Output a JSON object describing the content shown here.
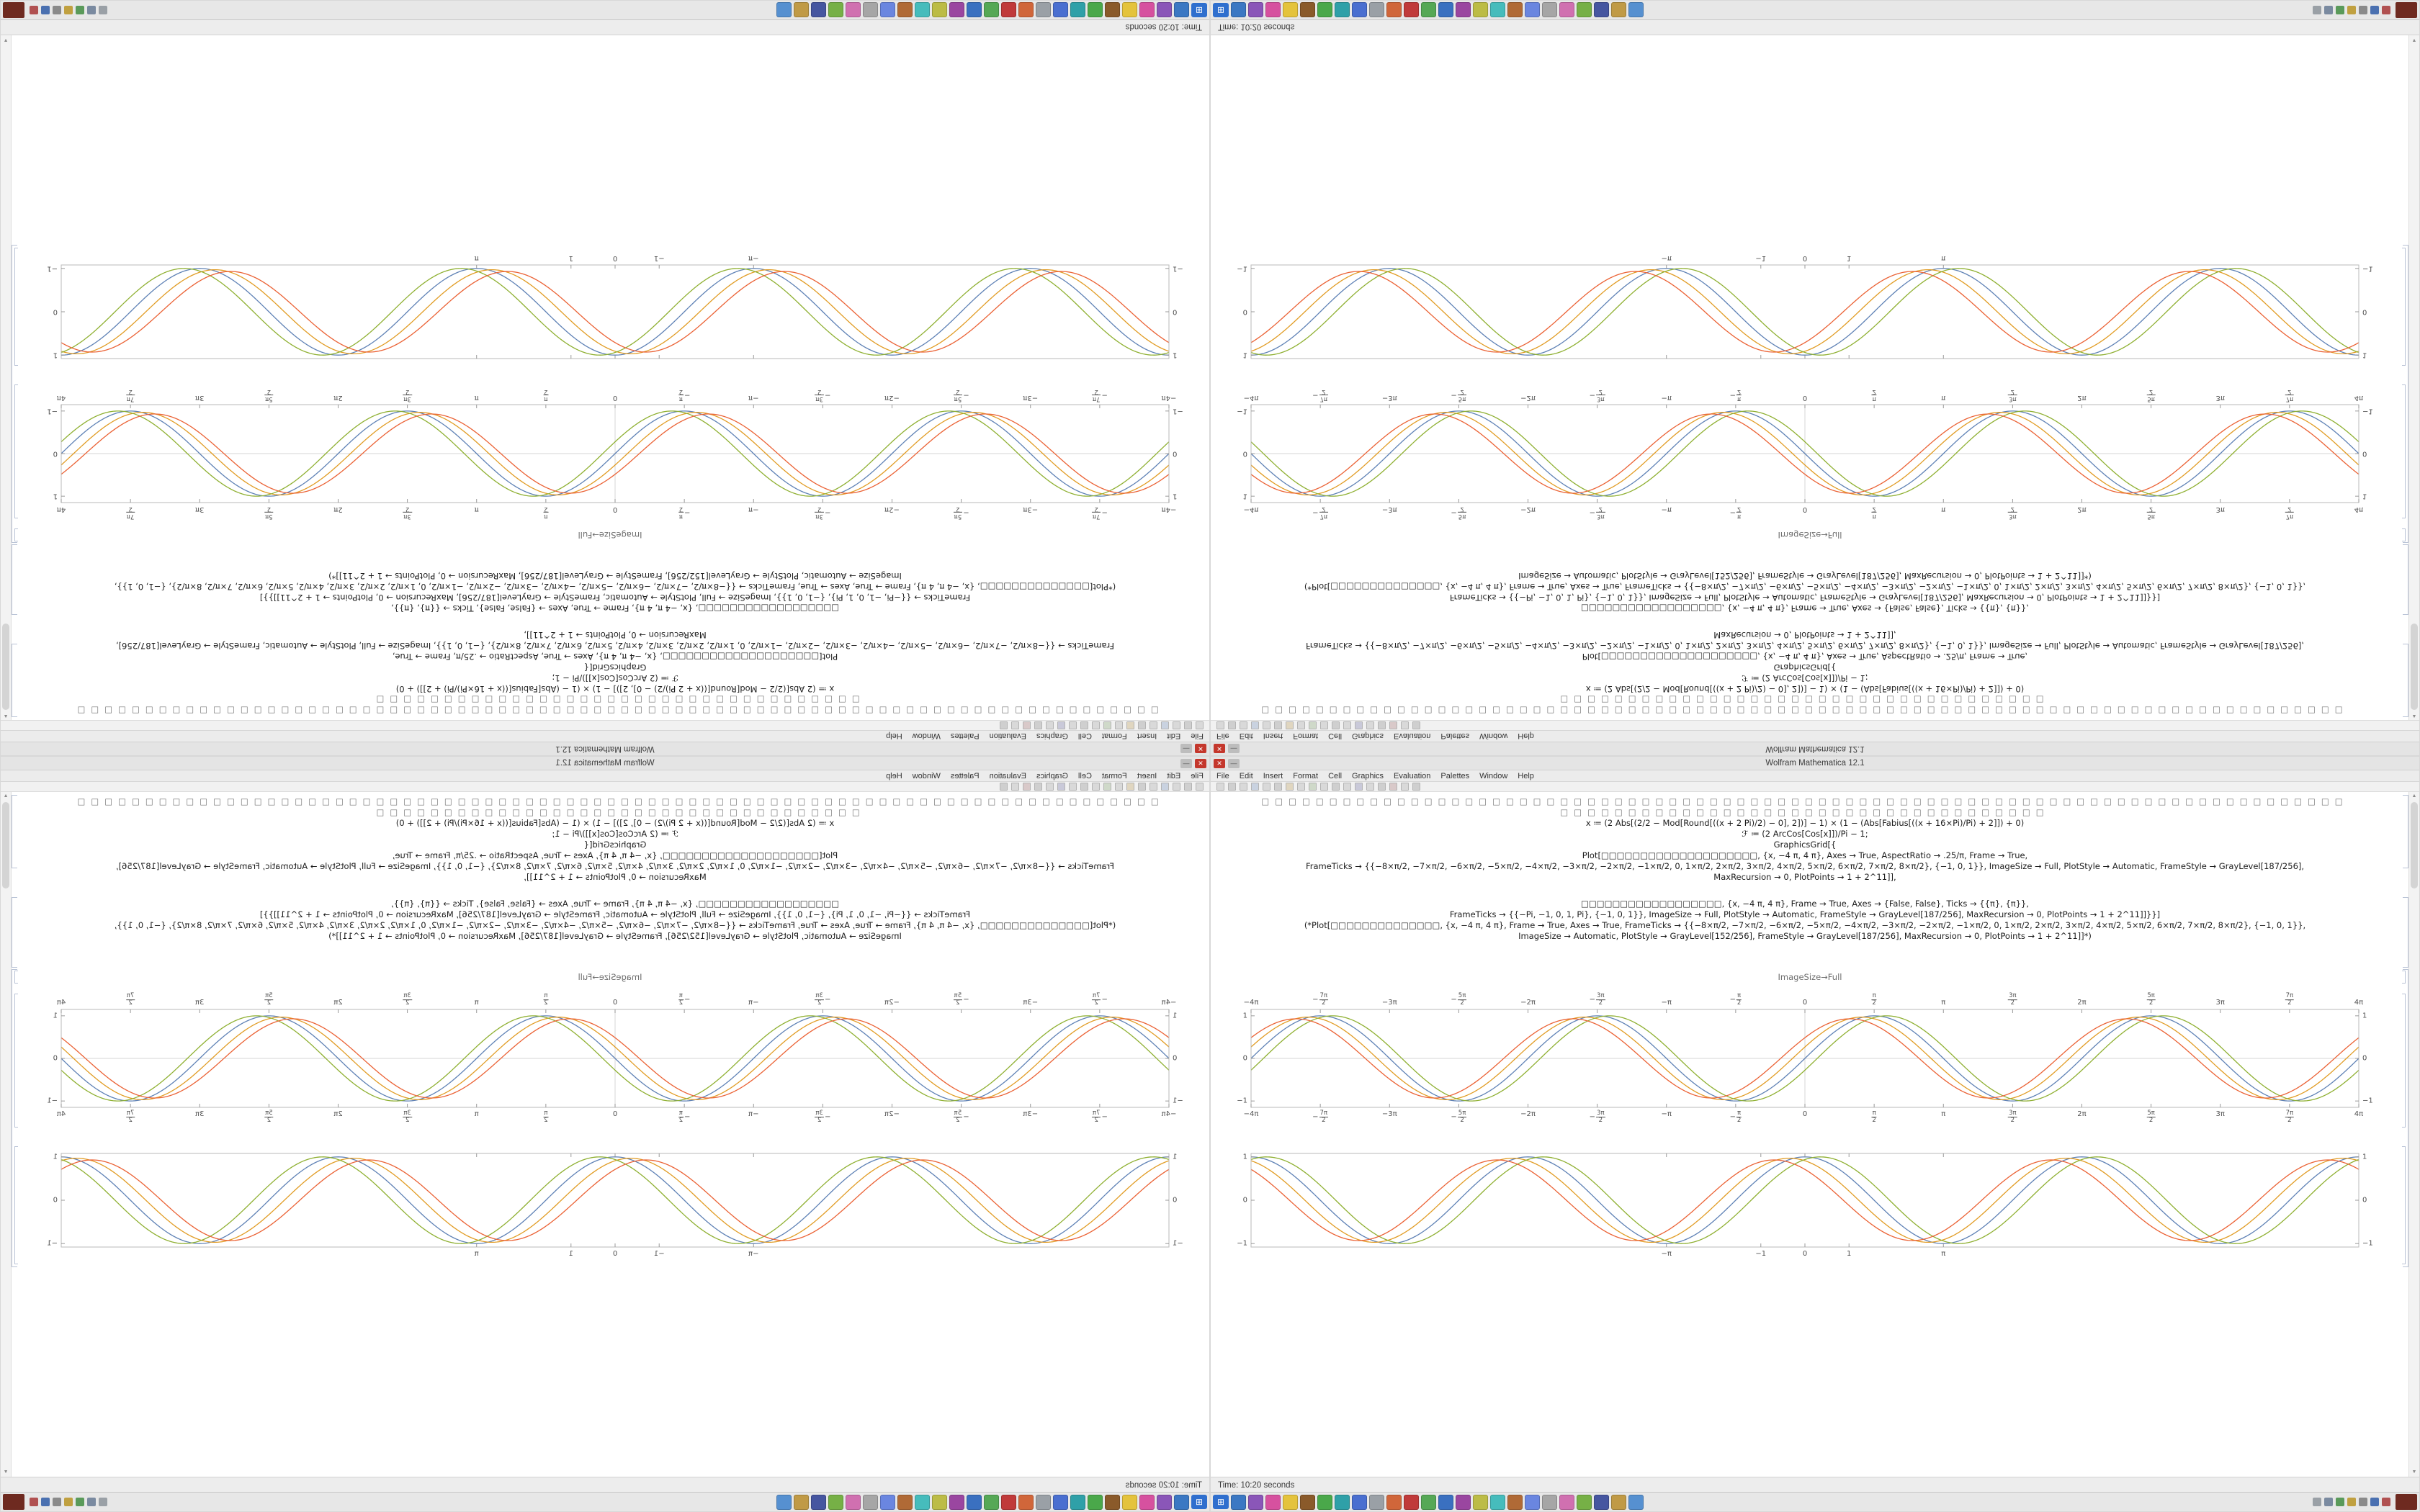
{
  "window": {
    "title": "Wolfram Mathematica 12.1",
    "close_glyph": "✕",
    "minimize_glyph": "—",
    "menus": [
      "File",
      "Edit",
      "Insert",
      "Format",
      "Cell",
      "Graphics",
      "Evaluation",
      "Palettes",
      "Window",
      "Help"
    ],
    "status_text": "Time: 10:20 seconds",
    "scroll_up_glyph": "▲",
    "scroll_down_glyph": "▼"
  },
  "notebook": {
    "caption": "ImageSize→Full",
    "cell1_lines": [
      "□□□□□□□□□□□□□□□□□□□□□□□□□□□□□□□□□□□□□□□□□□□□□□□□□□□□□□□□□□□□□□□□□□□□□□□□□□□□□□□□",
      "□□□□□□□□□□□□□□□□□□□□□□□□□□□□□□□□□□□□",
      "x ≔ (2 Abs[(2/2 − Mod[Round[((x + 2 Pi)/2) − 0], 2])] − 1) × (1 − (Abs[Fabius[((x + 16×Pi)/Pi) + 2]]) + 0)",
      "ℱ ≔ (2 ArcCos[Cos[x]])/Pi − 1;",
      "GraphicsGrid[{",
      "Plot[□□□□□□□□□□□□□□□□□□□□, {x, −4 π, 4 π}, Axes → True, AspectRatio → .25/π, Frame → True,",
      "FrameTicks → {{−8×π/2, −7×π/2, −6×π/2, −5×π/2, −4×π/2, −3×π/2, −2×π/2, −1×π/2, 0, 1×π/2, 2×π/2, 3×π/2, 4×π/2, 5×π/2, 6×π/2, 7×π/2, 8×π/2}, {−1, 0, 1}}, ImageSize → Full, PlotStyle → Automatic, FrameStyle → GrayLevel[187/256],",
      "MaxRecursion → 0, PlotPoints → 1 + 2^11]],"
    ],
    "cell2_lines": [
      "□□□□□□□□□□□□□□□□□□, {x, −4 π, 4 π}, Frame → True, Axes → {False, False}, Ticks → {{π}, {π}},",
      "FrameTicks → {{−Pi, −1, 0, 1, Pi}, {−1, 0, 1}}, ImageSize → Full, PlotStyle → Automatic, FrameStyle → GrayLevel[187/256], MaxRecursion → 0, PlotPoints → 1 + 2^11]]}}]",
      "(*Plot[□□□□□□□□□□□□□□, {x, −4 π, 4 π}, Frame → True, Axes → True, FrameTicks → {{−8×π/2, −7×π/2, −6×π/2, −5×π/2, −4×π/2, −3×π/2, −2×π/2, −1×π/2, 0, 1×π/2, 2×π/2, 3×π/2, 4×π/2, 5×π/2, 6×π/2, 7×π/2, 8×π/2}, {−1, 0, 1}},",
      "ImageSize → Automatic, PlotStyle → GrayLevel[152/256], FrameStyle → GrayLevel[187/256], MaxRecursion → 0, PlotPoints → 1 + 2^11]]*)"
    ]
  },
  "chart_data": [
    {
      "type": "line",
      "name": "plot-upper",
      "description": "Upper GraphicsGrid output: four overlapping phase-shifted sine waves on a gray frame with pi/2 tick labels",
      "x_min": -12.5664,
      "x_max": 12.5664,
      "y_min": -1.15,
      "y_max": 1.15,
      "axes": true,
      "frame": true,
      "labels_top": true,
      "labels_right": true,
      "frame_color": "#bababa",
      "axis_color": "#d6d6d6",
      "tick_color": "#8f8f8f",
      "margins": {
        "l": 26,
        "r": 26,
        "t": 20,
        "b": 24
      },
      "x_ticks": [
        {
          "v": -12.5664,
          "l": "−4π"
        },
        {
          "v": -10.9956,
          "s": "−",
          "n": "7π",
          "d": "2"
        },
        {
          "v": -9.4248,
          "l": "−3π"
        },
        {
          "v": -7.854,
          "s": "−",
          "n": "5π",
          "d": "2"
        },
        {
          "v": -6.2832,
          "l": "−2π"
        },
        {
          "v": -4.7124,
          "s": "−",
          "n": "3π",
          "d": "2"
        },
        {
          "v": -3.1416,
          "l": "−π"
        },
        {
          "v": -1.5708,
          "s": "−",
          "n": "π",
          "d": "2"
        },
        {
          "v": 0,
          "l": "0"
        },
        {
          "v": 1.5708,
          "n": "π",
          "d": "2"
        },
        {
          "v": 3.1416,
          "l": "π"
        },
        {
          "v": 4.7124,
          "n": "3π",
          "d": "2"
        },
        {
          "v": 6.2832,
          "l": "2π"
        },
        {
          "v": 7.854,
          "n": "5π",
          "d": "2"
        },
        {
          "v": 9.4248,
          "l": "3π"
        },
        {
          "v": 10.9956,
          "n": "7π",
          "d": "2"
        },
        {
          "v": 12.5664,
          "l": "4π"
        }
      ],
      "y_ticks": [
        {
          "v": -1,
          "l": "−1"
        },
        {
          "v": 0,
          "l": "0"
        },
        {
          "v": 1,
          "l": "1"
        }
      ],
      "series": [
        {
          "name": "series-blue",
          "fn": "sin",
          "amp": 1.0,
          "phase": 0.0,
          "color": "#5E81B5"
        },
        {
          "name": "series-orange",
          "fn": "sin",
          "amp": 0.97,
          "phase": 0.28,
          "color": "#E19C24"
        },
        {
          "name": "series-green",
          "fn": "sin",
          "amp": 1.0,
          "phase": -0.28,
          "color": "#8FB032"
        },
        {
          "name": "series-red",
          "fn": "sin",
          "amp": 0.93,
          "phase": 0.55,
          "color": "#EB6235"
        }
      ]
    },
    {
      "type": "line",
      "name": "plot-lower",
      "description": "Lower GraphicsGrid output: four overlapping phase-shifted cosine waves, sparse ticks at -Pi,-1,0,1,Pi",
      "x_min": -12.5664,
      "x_max": 12.5664,
      "y_min": -1.08,
      "y_max": 1.08,
      "axes": false,
      "frame": true,
      "labels_top": false,
      "labels_right": true,
      "frame_color": "#bababa",
      "axis_color": "#d6d6d6",
      "tick_color": "#8f8f8f",
      "margins": {
        "l": 26,
        "r": 26,
        "t": 8,
        "b": 20
      },
      "x_ticks": [
        {
          "v": -3.1416,
          "l": "−π"
        },
        {
          "v": -1,
          "l": "−1"
        },
        {
          "v": 0,
          "l": "0"
        },
        {
          "v": 1,
          "l": "1"
        },
        {
          "v": 3.1416,
          "l": "π"
        }
      ],
      "y_ticks": [
        {
          "v": -1,
          "l": "−1"
        },
        {
          "v": 0,
          "l": "0"
        },
        {
          "v": 1,
          "l": "1"
        }
      ],
      "series": [
        {
          "name": "series-blue",
          "fn": "cos",
          "amp": 1.0,
          "phase": 0.0,
          "color": "#5E81B5"
        },
        {
          "name": "series-orange",
          "fn": "cos",
          "amp": 0.97,
          "phase": 0.35,
          "color": "#E19C24"
        },
        {
          "name": "series-green",
          "fn": "cos",
          "amp": 1.0,
          "phase": -0.35,
          "color": "#8FB032"
        },
        {
          "name": "series-red",
          "fn": "cos",
          "amp": 0.93,
          "phase": 0.7,
          "color": "#EB6235"
        }
      ]
    }
  ],
  "toolbar_icon_colors": [
    "#d9d9d9",
    "#cfcfcf",
    "#d9d9d9",
    "#c9d2e0",
    "#d9d9d9",
    "#cfcfcf",
    "#e0d6c0",
    "#d9d9d9",
    "#cfd9c9",
    "#d9d9d9",
    "#cfcfcf",
    "#d9d9d9",
    "#c9c9d9",
    "#d9d9d9",
    "#cfcfcf",
    "#d9c9c9",
    "#d9d9d9",
    "#cfcfcf"
  ],
  "taskbar": {
    "start_glyph": "⊞",
    "app_icon_colors": [
      "#3b78c3",
      "#8a56b8",
      "#d6519f",
      "#e4c33c",
      "#8a5a2a",
      "#4aa84a",
      "#2fa0a8",
      "#4a6fd0",
      "#9aa0a6",
      "#d0663a",
      "#c03a3a",
      "#56a856",
      "#3a70c0",
      "#9a46a0",
      "#bcbc46",
      "#46bcbc",
      "#b06a36",
      "#6a86e0",
      "#a6a6a6",
      "#d070b0",
      "#76b046",
      "#4656a0",
      "#c09a46",
      "#5690d0"
    ],
    "tray_icon_colors": [
      "#9aa0a6",
      "#7a8aa0",
      "#5a9a5a",
      "#c0a040",
      "#8a8a8a",
      "#4a70b0",
      "#b05050"
    ],
    "corner_color": "#6e2a20"
  }
}
